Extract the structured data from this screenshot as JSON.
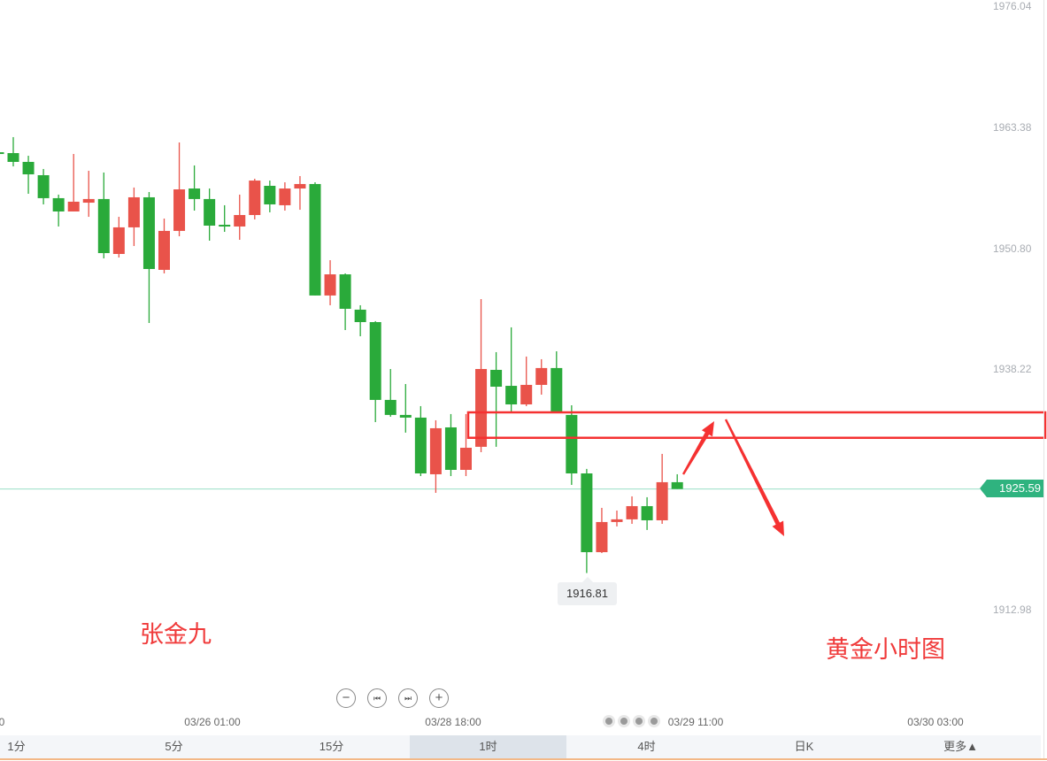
{
  "chart_data": {
    "type": "candlestick",
    "title": "",
    "ylim": [
      1912.98,
      1976.04
    ],
    "y_ticks": [
      "1976.04",
      "1963.38",
      "1950.80",
      "1938.22",
      "1912.98"
    ],
    "x_ticks": [
      "0",
      "03/26 01:00",
      "03/28 18:00",
      "03/29 11:00",
      "03/30 03:00"
    ],
    "up_color": "#e9534a",
    "down_color": "#2aaa3a",
    "current_price": "1925.59",
    "current_price_color": "#2fb37f",
    "low_label": "1916.81",
    "candles_ohlc": [
      [
        1960.78,
        1960.78,
        1960.69,
        1960.69
      ],
      [
        1960.69,
        1962.36,
        1959.3,
        1959.77
      ],
      [
        1959.77,
        1960.41,
        1956.44,
        1958.47
      ],
      [
        1958.38,
        1959.03,
        1955.33,
        1955.98
      ],
      [
        1955.98,
        1956.35,
        1953.02,
        1954.59
      ],
      [
        1954.59,
        1960.6,
        1954.59,
        1955.61
      ],
      [
        1955.51,
        1958.84,
        1954.03,
        1955.89
      ],
      [
        1955.89,
        1958.66,
        1949.69,
        1950.24
      ],
      [
        1950.15,
        1954.03,
        1949.78,
        1952.93
      ],
      [
        1952.93,
        1957.09,
        1950.98,
        1956.07
      ],
      [
        1956.07,
        1956.62,
        1942.94,
        1948.58
      ],
      [
        1948.49,
        1953.85,
        1948.12,
        1952.56
      ],
      [
        1952.56,
        1961.8,
        1952.0,
        1956.9
      ],
      [
        1956.99,
        1959.4,
        1954.68,
        1955.89
      ],
      [
        1955.89,
        1956.99,
        1951.54,
        1953.11
      ],
      [
        1953.2,
        1955.24,
        1952.46,
        1953.02
      ],
      [
        1953.02,
        1956.35,
        1951.63,
        1954.22
      ],
      [
        1954.22,
        1958.01,
        1953.76,
        1957.82
      ],
      [
        1957.27,
        1957.82,
        1954.5,
        1955.33
      ],
      [
        1955.24,
        1957.64,
        1954.68,
        1956.99
      ],
      [
        1956.99,
        1958.29,
        1954.77,
        1957.46
      ],
      [
        1957.46,
        1957.64,
        1945.81,
        1945.81
      ],
      [
        1945.81,
        1949.5,
        1944.79,
        1948.02
      ],
      [
        1948.02,
        1948.12,
        1942.2,
        1944.42
      ],
      [
        1944.33,
        1944.79,
        1941.55,
        1943.03
      ],
      [
        1943.03,
        1943.13,
        1932.58,
        1934.9
      ],
      [
        1934.9,
        1938.13,
        1933.14,
        1933.33
      ],
      [
        1933.33,
        1936.56,
        1931.48,
        1933.05
      ],
      [
        1933.05,
        1934.25,
        1926.94,
        1927.22
      ],
      [
        1927.13,
        1932.77,
        1925.19,
        1931.94
      ],
      [
        1932.03,
        1933.42,
        1926.94,
        1927.59
      ],
      [
        1927.59,
        1933.42,
        1926.94,
        1929.9
      ],
      [
        1930.0,
        1945.44,
        1929.44,
        1938.13
      ],
      [
        1938.04,
        1939.89,
        1930.0,
        1936.28
      ],
      [
        1936.37,
        1942.48,
        1933.51,
        1934.43
      ],
      [
        1934.43,
        1939.43,
        1934.25,
        1936.47
      ],
      [
        1936.47,
        1939.15,
        1935.45,
        1938.23
      ],
      [
        1938.23,
        1939.98,
        1933.51,
        1933.51
      ],
      [
        1933.33,
        1934.34,
        1926.02,
        1927.22
      ],
      [
        1927.22,
        1927.69,
        1916.81,
        1918.99
      ],
      [
        1918.99,
        1923.62,
        1918.9,
        1922.14
      ],
      [
        1922.14,
        1923.34,
        1921.68,
        1922.42
      ],
      [
        1922.42,
        1924.82,
        1921.95,
        1923.8
      ],
      [
        1923.8,
        1924.73,
        1921.31,
        1922.32
      ],
      [
        1922.32,
        1929.26,
        1921.95,
        1926.3
      ],
      [
        1926.3,
        1927.13,
        1925.59,
        1925.59
      ]
    ],
    "annotation_zone": [
      1930.94,
      1933.6
    ],
    "annotation_color": "#f53131"
  },
  "annotations": {
    "author": "张金九",
    "caption": "黄金小时图"
  },
  "controls": [
    {
      "name": "zoom-out",
      "icon": "minus-icon",
      "glyph": "−"
    },
    {
      "name": "step-back",
      "icon": "skip-back-icon",
      "glyph": "⏮"
    },
    {
      "name": "step-forward",
      "icon": "skip-forward-icon",
      "glyph": "⏭"
    },
    {
      "name": "zoom-in",
      "icon": "plus-icon",
      "glyph": "+"
    }
  ],
  "tabs": [
    {
      "label": "1分"
    },
    {
      "label": "5分"
    },
    {
      "label": "15分"
    },
    {
      "label": "1时",
      "selected": true
    },
    {
      "label": "4时"
    },
    {
      "label": "日K"
    },
    {
      "label": "更多▲"
    }
  ]
}
